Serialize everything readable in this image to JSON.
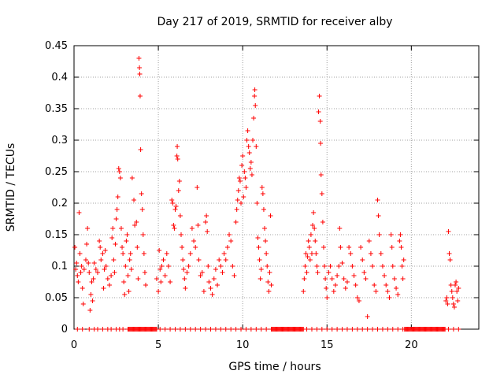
{
  "chart_data": {
    "type": "scatter",
    "title": "Day 217 of 2019, SRMTID for receiver alby",
    "xlabel": "GPS time / hours",
    "ylabel": "SRMTID / TECUs",
    "xlim": [
      0,
      24
    ],
    "ylim": [
      0,
      0.45
    ],
    "xticks": [
      0,
      5,
      10,
      15,
      20
    ],
    "yticks": [
      0,
      0.05,
      0.1,
      0.15,
      0.2,
      0.25,
      0.3,
      0.35,
      0.4,
      0.45
    ],
    "xtick_labels": [
      "0",
      "5",
      "10",
      "15",
      "20"
    ],
    "ytick_labels": [
      "0",
      "0.05",
      "0.1",
      "0.15",
      "0.2",
      "0.25",
      "0.3",
      "0.35",
      "0.4",
      "0.45"
    ],
    "grid": true,
    "marker": "+",
    "color": "#ff0000",
    "series": [
      {
        "name": "SRMTID",
        "points": [
          [
            0.05,
            0.13
          ],
          [
            0.1,
            0.095
          ],
          [
            0.15,
            0.105
          ],
          [
            0.2,
            0.085
          ],
          [
            0.25,
            0.075
          ],
          [
            0.3,
            0.185
          ],
          [
            0.35,
            0.12
          ],
          [
            0.4,
            0.09
          ],
          [
            0.45,
            0.1
          ],
          [
            0.5,
            0.065
          ],
          [
            0.55,
            0.04
          ],
          [
            0.6,
            0.095
          ],
          [
            0.7,
            0.11
          ],
          [
            0.75,
            0.135
          ],
          [
            0.8,
            0.16
          ],
          [
            0.85,
            0.105
          ],
          [
            0.9,
            0.09
          ],
          [
            0.95,
            0.03
          ],
          [
            1.0,
            0.055
          ],
          [
            1.05,
            0.075
          ],
          [
            1.1,
            0.045
          ],
          [
            1.15,
            0.08
          ],
          [
            1.2,
            0.105
          ],
          [
            1.3,
            0.095
          ],
          [
            1.4,
            0.09
          ],
          [
            1.5,
            0.14
          ],
          [
            1.55,
            0.13
          ],
          [
            1.6,
            0.11
          ],
          [
            1.7,
            0.12
          ],
          [
            1.75,
            0.065
          ],
          [
            1.8,
            0.095
          ],
          [
            1.85,
            0.125
          ],
          [
            1.9,
            0.1
          ],
          [
            2.0,
            0.08
          ],
          [
            2.1,
            0.07
          ],
          [
            2.2,
            0.085
          ],
          [
            2.25,
            0.145
          ],
          [
            2.3,
            0.16
          ],
          [
            2.35,
            0.11
          ],
          [
            2.4,
            0.09
          ],
          [
            2.45,
            0.135
          ],
          [
            2.5,
            0.175
          ],
          [
            2.55,
            0.19
          ],
          [
            2.6,
            0.21
          ],
          [
            2.65,
            0.255
          ],
          [
            2.7,
            0.25
          ],
          [
            2.75,
            0.24
          ],
          [
            2.8,
            0.16
          ],
          [
            2.85,
            0.13
          ],
          [
            2.9,
            0.12
          ],
          [
            2.95,
            0.075
          ],
          [
            3.0,
            0.055
          ],
          [
            3.05,
            0.1
          ],
          [
            3.1,
            0.14
          ],
          [
            3.15,
            0.15
          ],
          [
            3.2,
            0.085
          ],
          [
            3.25,
            0.06
          ],
          [
            3.3,
            0.11
          ],
          [
            3.35,
            0.12
          ],
          [
            3.4,
            0.095
          ],
          [
            3.45,
            0.24
          ],
          [
            3.55,
            0.205
          ],
          [
            3.6,
            0.165
          ],
          [
            3.7,
            0.17
          ],
          [
            3.75,
            0.13
          ],
          [
            3.8,
            0.08
          ],
          [
            3.85,
            0.43
          ],
          [
            3.88,
            0.415
          ],
          [
            3.9,
            0.405
          ],
          [
            3.92,
            0.37
          ],
          [
            3.95,
            0.285
          ],
          [
            4.0,
            0.215
          ],
          [
            4.05,
            0.19
          ],
          [
            4.1,
            0.15
          ],
          [
            4.15,
            0.12
          ],
          [
            4.2,
            0.09
          ],
          [
            4.25,
            0.07
          ],
          [
            4.9,
            0.08
          ],
          [
            5.0,
            0.06
          ],
          [
            5.05,
            0.125
          ],
          [
            5.1,
            0.095
          ],
          [
            5.15,
            0.075
          ],
          [
            5.2,
            0.1
          ],
          [
            5.3,
            0.11
          ],
          [
            5.4,
            0.085
          ],
          [
            5.5,
            0.12
          ],
          [
            5.6,
            0.1
          ],
          [
            5.7,
            0.075
          ],
          [
            5.8,
            0.205
          ],
          [
            5.85,
            0.2
          ],
          [
            5.9,
            0.165
          ],
          [
            5.95,
            0.16
          ],
          [
            6.0,
            0.19
          ],
          [
            6.05,
            0.195
          ],
          [
            6.1,
            0.275
          ],
          [
            6.12,
            0.29
          ],
          [
            6.15,
            0.27
          ],
          [
            6.2,
            0.22
          ],
          [
            6.25,
            0.235
          ],
          [
            6.3,
            0.18
          ],
          [
            6.35,
            0.15
          ],
          [
            6.4,
            0.13
          ],
          [
            6.45,
            0.11
          ],
          [
            6.5,
            0.095
          ],
          [
            6.55,
            0.08
          ],
          [
            6.6,
            0.065
          ],
          [
            6.7,
            0.09
          ],
          [
            6.8,
            0.1
          ],
          [
            6.9,
            0.12
          ],
          [
            7.0,
            0.16
          ],
          [
            7.1,
            0.14
          ],
          [
            7.2,
            0.13
          ],
          [
            7.3,
            0.225
          ],
          [
            7.35,
            0.165
          ],
          [
            7.4,
            0.11
          ],
          [
            7.5,
            0.085
          ],
          [
            7.6,
            0.09
          ],
          [
            7.7,
            0.06
          ],
          [
            7.8,
            0.17
          ],
          [
            7.85,
            0.18
          ],
          [
            7.9,
            0.155
          ],
          [
            7.95,
            0.1
          ],
          [
            8.0,
            0.075
          ],
          [
            8.1,
            0.065
          ],
          [
            8.2,
            0.055
          ],
          [
            8.3,
            0.08
          ],
          [
            8.4,
            0.095
          ],
          [
            8.5,
            0.07
          ],
          [
            8.6,
            0.11
          ],
          [
            8.7,
            0.1
          ],
          [
            8.8,
            0.09
          ],
          [
            8.9,
            0.12
          ],
          [
            9.0,
            0.11
          ],
          [
            9.1,
            0.13
          ],
          [
            9.2,
            0.15
          ],
          [
            9.3,
            0.14
          ],
          [
            9.4,
            0.1
          ],
          [
            9.5,
            0.085
          ],
          [
            9.6,
            0.17
          ],
          [
            9.65,
            0.19
          ],
          [
            9.7,
            0.205
          ],
          [
            9.75,
            0.22
          ],
          [
            9.8,
            0.24
          ],
          [
            9.85,
            0.235
          ],
          [
            9.9,
            0.2
          ],
          [
            9.95,
            0.26
          ],
          [
            10.0,
            0.275
          ],
          [
            10.05,
            0.21
          ],
          [
            10.1,
            0.25
          ],
          [
            10.15,
            0.24
          ],
          [
            10.2,
            0.225
          ],
          [
            10.25,
            0.3
          ],
          [
            10.3,
            0.315
          ],
          [
            10.35,
            0.29
          ],
          [
            10.4,
            0.28
          ],
          [
            10.45,
            0.255
          ],
          [
            10.5,
            0.265
          ],
          [
            10.55,
            0.245
          ],
          [
            10.6,
            0.3
          ],
          [
            10.65,
            0.335
          ],
          [
            10.7,
            0.37
          ],
          [
            10.72,
            0.38
          ],
          [
            10.75,
            0.355
          ],
          [
            10.8,
            0.29
          ],
          [
            10.85,
            0.2
          ],
          [
            10.9,
            0.145
          ],
          [
            10.95,
            0.13
          ],
          [
            11.0,
            0.11
          ],
          [
            11.05,
            0.08
          ],
          [
            11.1,
            0.095
          ],
          [
            11.15,
            0.225
          ],
          [
            11.2,
            0.215
          ],
          [
            11.25,
            0.19
          ],
          [
            11.3,
            0.16
          ],
          [
            11.35,
            0.14
          ],
          [
            11.4,
            0.12
          ],
          [
            11.45,
            0.1
          ],
          [
            11.5,
            0.075
          ],
          [
            11.55,
            0.06
          ],
          [
            11.6,
            0.09
          ],
          [
            11.65,
            0.18
          ],
          [
            11.7,
            0.07
          ],
          [
            13.6,
            0.06
          ],
          [
            13.65,
            0.08
          ],
          [
            13.7,
            0.1
          ],
          [
            13.75,
            0.12
          ],
          [
            13.8,
            0.09
          ],
          [
            13.85,
            0.115
          ],
          [
            13.9,
            0.14
          ],
          [
            13.95,
            0.13
          ],
          [
            14.0,
            0.11
          ],
          [
            14.05,
            0.15
          ],
          [
            14.1,
            0.12
          ],
          [
            14.15,
            0.165
          ],
          [
            14.2,
            0.185
          ],
          [
            14.25,
            0.16
          ],
          [
            14.3,
            0.14
          ],
          [
            14.35,
            0.12
          ],
          [
            14.4,
            0.1
          ],
          [
            14.45,
            0.09
          ],
          [
            14.5,
            0.345
          ],
          [
            14.55,
            0.37
          ],
          [
            14.6,
            0.33
          ],
          [
            14.62,
            0.295
          ],
          [
            14.65,
            0.245
          ],
          [
            14.7,
            0.215
          ],
          [
            14.75,
            0.17
          ],
          [
            14.8,
            0.13
          ],
          [
            14.85,
            0.1
          ],
          [
            14.9,
            0.08
          ],
          [
            14.95,
            0.065
          ],
          [
            15.0,
            0.05
          ],
          [
            15.1,
            0.09
          ],
          [
            15.2,
            0.1
          ],
          [
            15.3,
            0.08
          ],
          [
            15.4,
            0.06
          ],
          [
            15.5,
            0.07
          ],
          [
            15.6,
            0.085
          ],
          [
            15.7,
            0.1
          ],
          [
            15.75,
            0.16
          ],
          [
            15.8,
            0.13
          ],
          [
            15.9,
            0.105
          ],
          [
            16.0,
            0.08
          ],
          [
            16.1,
            0.065
          ],
          [
            16.2,
            0.075
          ],
          [
            16.3,
            0.13
          ],
          [
            16.4,
            0.12
          ],
          [
            16.5,
            0.1
          ],
          [
            16.6,
            0.085
          ],
          [
            16.7,
            0.07
          ],
          [
            16.8,
            0.05
          ],
          [
            16.9,
            0.045
          ],
          [
            17.0,
            0.13
          ],
          [
            17.1,
            0.11
          ],
          [
            17.2,
            0.09
          ],
          [
            17.3,
            0.08
          ],
          [
            17.4,
            0.02
          ],
          [
            17.5,
            0.14
          ],
          [
            17.6,
            0.12
          ],
          [
            17.7,
            0.1
          ],
          [
            17.8,
            0.07
          ],
          [
            17.9,
            0.06
          ],
          [
            18.0,
            0.205
          ],
          [
            18.05,
            0.18
          ],
          [
            18.1,
            0.15
          ],
          [
            18.2,
            0.12
          ],
          [
            18.3,
            0.1
          ],
          [
            18.4,
            0.085
          ],
          [
            18.5,
            0.07
          ],
          [
            18.6,
            0.06
          ],
          [
            18.7,
            0.05
          ],
          [
            18.8,
            0.15
          ],
          [
            18.85,
            0.13
          ],
          [
            18.9,
            0.1
          ],
          [
            19.0,
            0.08
          ],
          [
            19.1,
            0.065
          ],
          [
            19.2,
            0.055
          ],
          [
            19.3,
            0.14
          ],
          [
            19.35,
            0.15
          ],
          [
            19.4,
            0.13
          ],
          [
            19.45,
            0.1
          ],
          [
            19.5,
            0.08
          ],
          [
            19.55,
            0.11
          ],
          [
            22.05,
            0.045
          ],
          [
            22.1,
            0.05
          ],
          [
            22.15,
            0.04
          ],
          [
            22.2,
            0.155
          ],
          [
            22.25,
            0.12
          ],
          [
            22.3,
            0.11
          ],
          [
            22.35,
            0.07
          ],
          [
            22.4,
            0.06
          ],
          [
            22.45,
            0.05
          ],
          [
            22.5,
            0.04
          ],
          [
            22.55,
            0.035
          ],
          [
            22.6,
            0.07
          ],
          [
            22.65,
            0.075
          ],
          [
            22.7,
            0.06
          ],
          [
            22.75,
            0.045
          ],
          [
            22.8,
            0.065
          ]
        ]
      }
    ],
    "zero_ranges_hours": [
      [
        3.2,
        4.9
      ],
      [
        11.7,
        13.6
      ],
      [
        19.6,
        22.0
      ]
    ],
    "zero_scatter_hours": [
      0.2,
      0.5,
      0.9,
      1.2,
      1.4,
      1.7,
      2.0,
      2.2,
      2.5,
      2.7,
      2.9,
      5.1,
      5.4,
      5.7,
      6.0,
      6.3,
      6.6,
      6.9,
      7.2,
      7.5,
      7.8,
      8.1,
      8.4,
      8.7,
      9.0,
      9.3,
      9.6,
      9.9,
      10.2,
      10.5,
      10.8,
      11.1,
      11.4,
      13.8,
      14.1,
      14.4,
      14.7,
      15.0,
      15.3,
      15.6,
      15.9,
      16.2,
      16.5,
      16.8,
      17.1,
      17.4,
      17.7,
      18.0,
      18.3,
      18.6,
      18.9,
      19.2,
      19.5,
      22.2,
      22.5,
      22.8
    ]
  }
}
